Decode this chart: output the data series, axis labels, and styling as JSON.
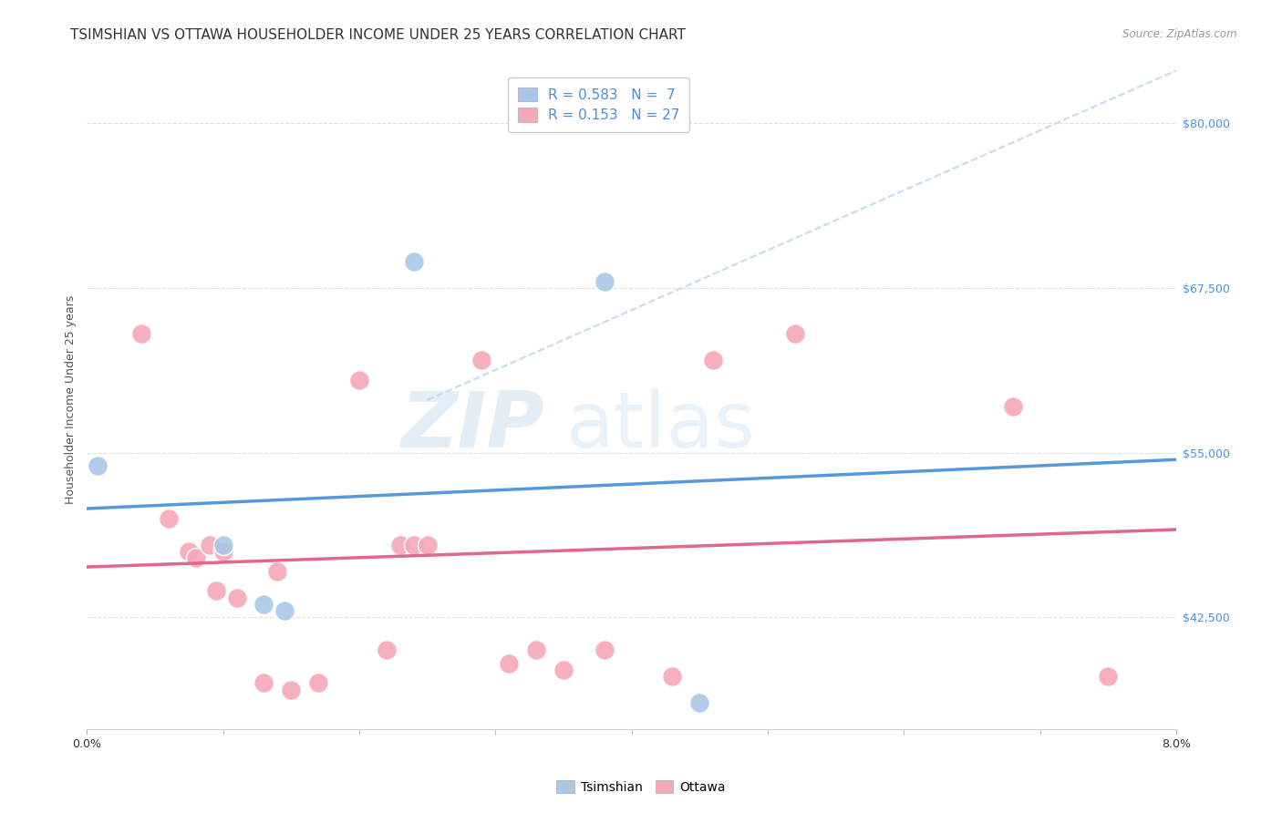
{
  "title": "TSIMSHIAN VS OTTAWA HOUSEHOLDER INCOME UNDER 25 YEARS CORRELATION CHART",
  "source": "Source: ZipAtlas.com",
  "xlabel": "",
  "ylabel": "Householder Income Under 25 years",
  "xlim": [
    0.0,
    0.08
  ],
  "ylim": [
    34000,
    84000
  ],
  "ytick_values": [
    42500,
    55000,
    67500,
    80000
  ],
  "ytick_labels": [
    "$42,500",
    "$55,000",
    "$67,500",
    "$80,000"
  ],
  "tsimshian_R": 0.583,
  "tsimshian_N": 7,
  "ottawa_R": 0.153,
  "ottawa_N": 27,
  "tsimshian_color": "#a8c8e8",
  "ottawa_color": "#f5a8b8",
  "tsimshian_line_color": "#5599dd",
  "ottawa_line_color": "#e06888",
  "ref_line_color": "#c0d8f0",
  "tsimshian_x": [
    0.0008,
    0.01,
    0.013,
    0.0145,
    0.024,
    0.038,
    0.045
  ],
  "tsimshian_y": [
    54000,
    48000,
    43500,
    43000,
    69500,
    68000,
    36000
  ],
  "ottawa_x": [
    0.004,
    0.006,
    0.0075,
    0.008,
    0.009,
    0.0095,
    0.01,
    0.011,
    0.013,
    0.014,
    0.015,
    0.017,
    0.02,
    0.022,
    0.023,
    0.024,
    0.025,
    0.029,
    0.031,
    0.033,
    0.035,
    0.038,
    0.043,
    0.046,
    0.052,
    0.068,
    0.075
  ],
  "ottawa_y": [
    64000,
    50000,
    47500,
    47000,
    48000,
    44500,
    47500,
    44000,
    37500,
    46000,
    37000,
    37500,
    60500,
    40000,
    48000,
    48000,
    48000,
    62000,
    39000,
    40000,
    38500,
    40000,
    38000,
    62000,
    64000,
    58500,
    38000
  ],
  "background_color": "#ffffff",
  "grid_color": "#e0e0e0",
  "title_fontsize": 11,
  "axis_label_fontsize": 9,
  "tick_fontsize": 9,
  "legend_fontsize": 11
}
